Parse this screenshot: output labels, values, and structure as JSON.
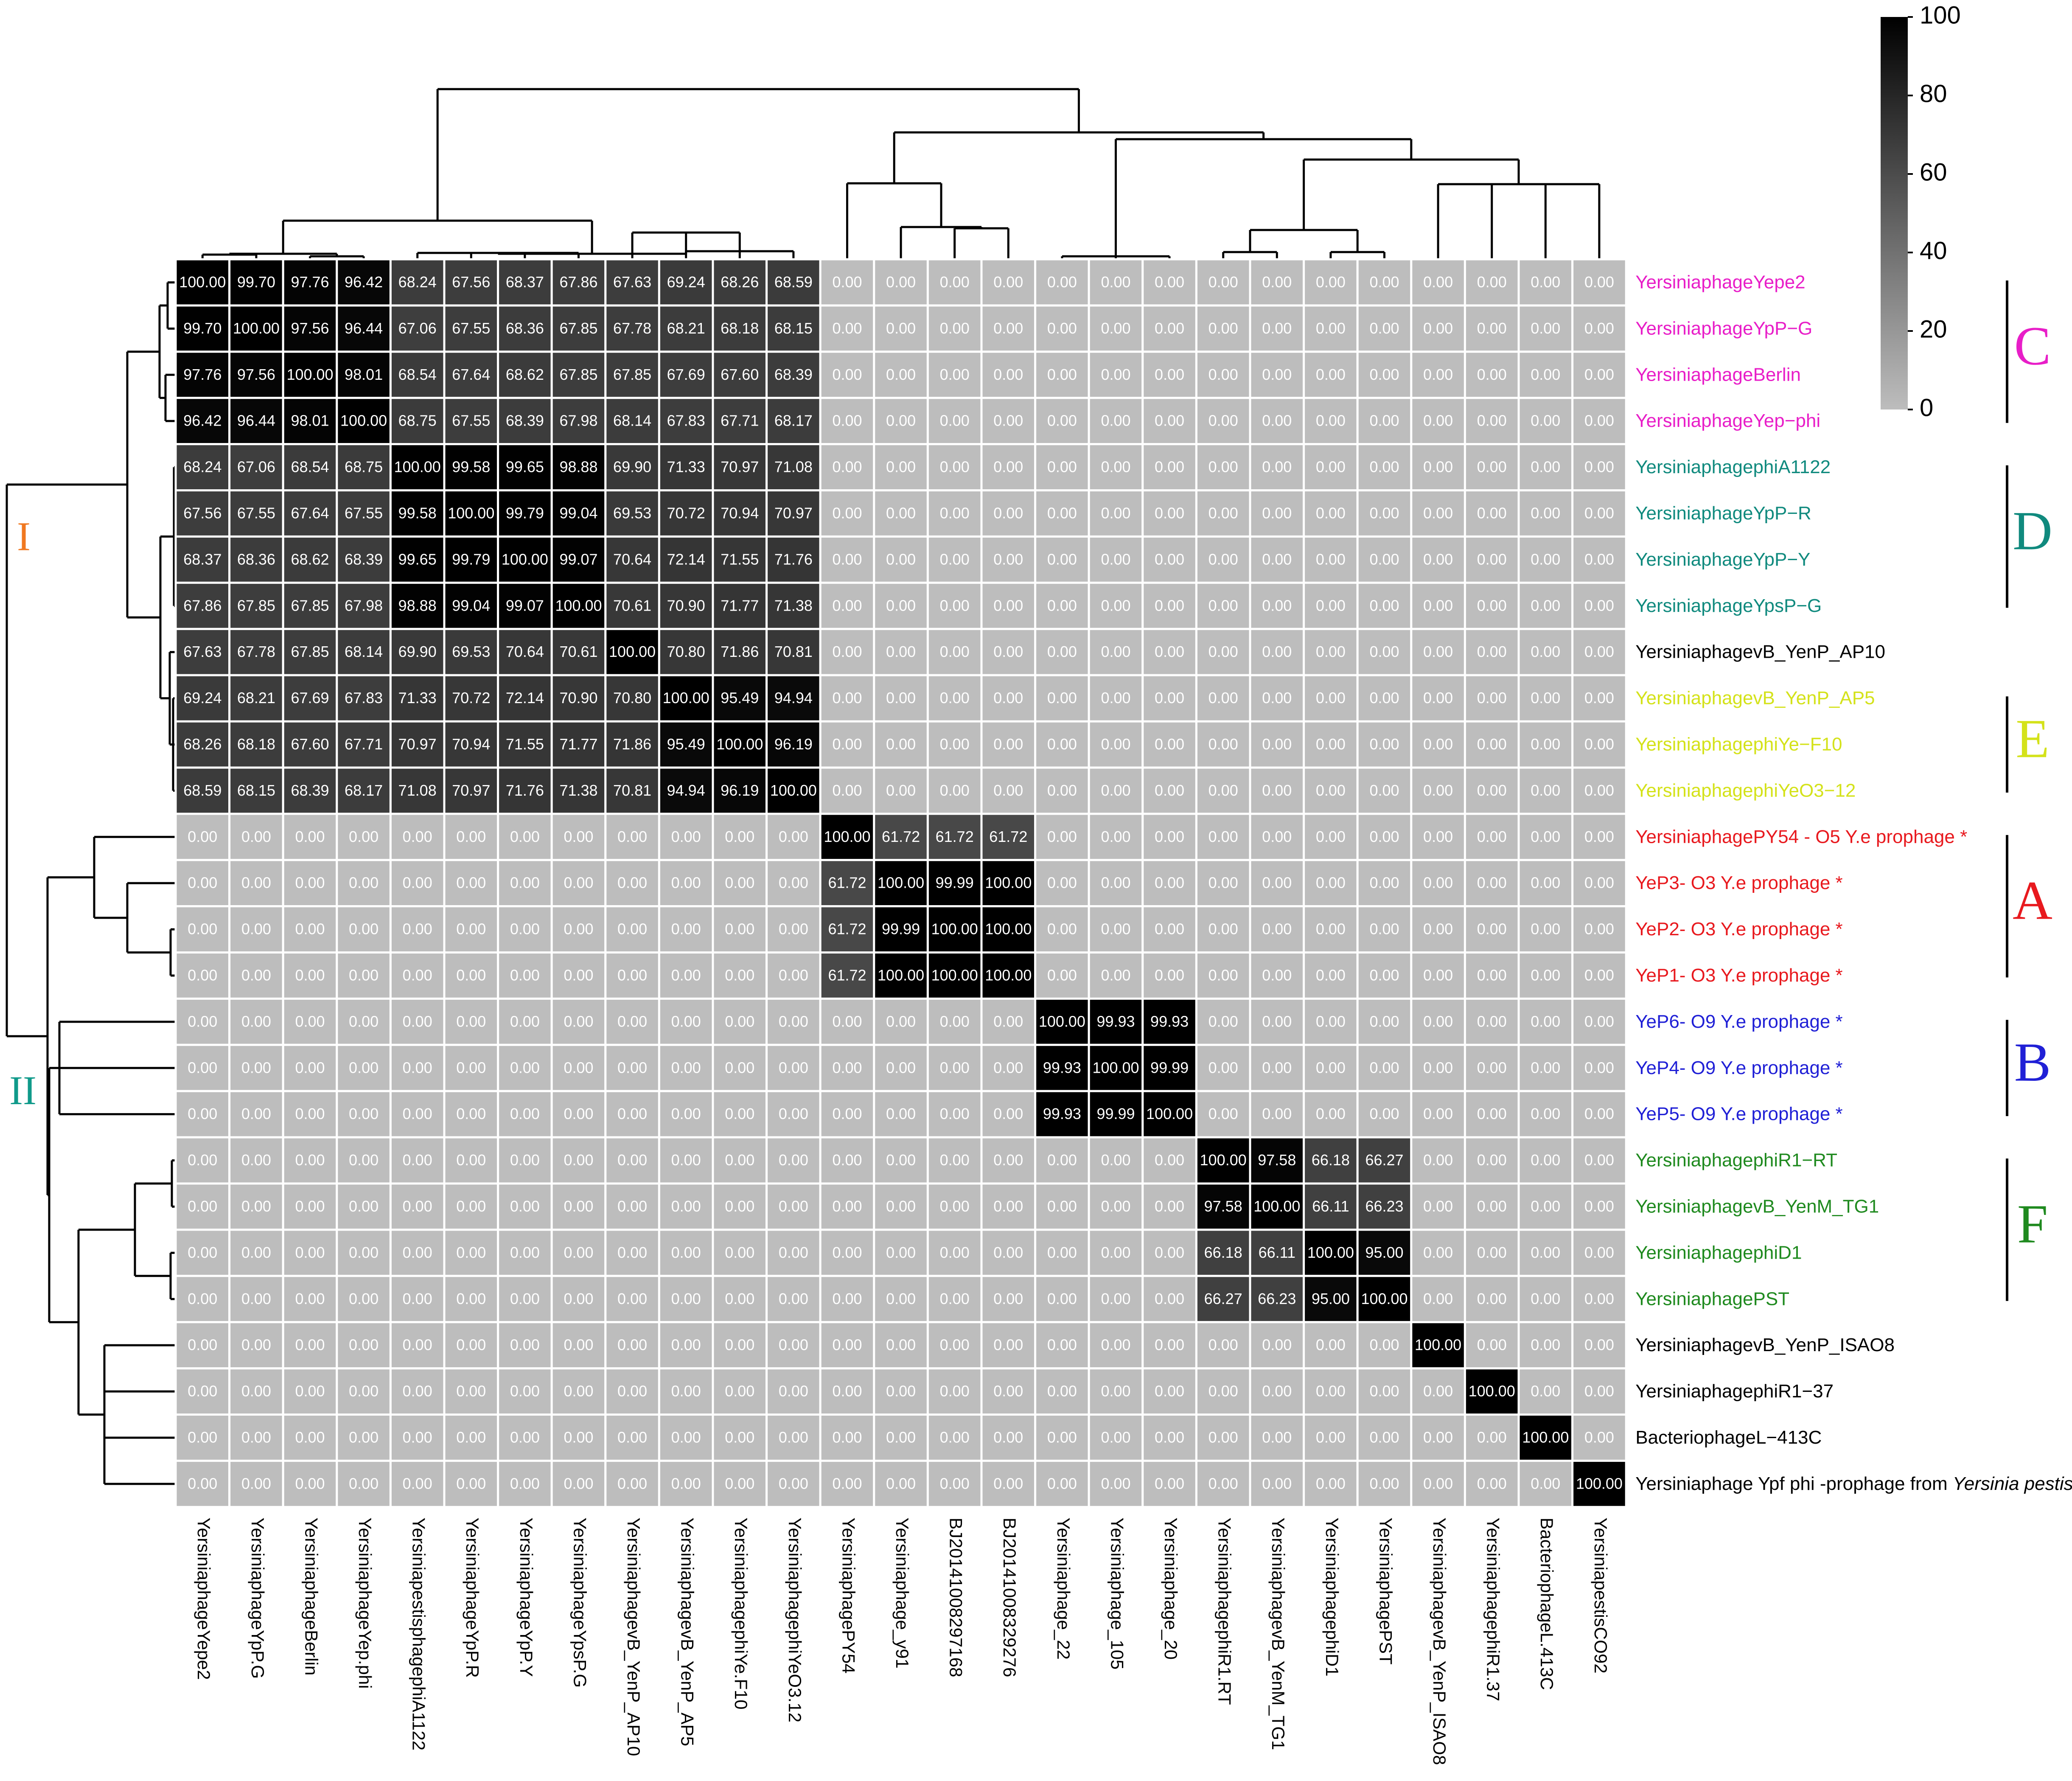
{
  "chart_data": {
    "type": "heatmap",
    "title": "",
    "columns": [
      "YersiniaphageYepe2",
      "YersiniaphageYpP.G",
      "YersiniaphageBerlin",
      "YersiniaphageYep.phi",
      "YersiniapestisphagephiA1122",
      "YersiniaphageYpP.R",
      "YersiniaphageYpP.Y",
      "YersiniaphageYpsP.G",
      "YersiniaphagevB_YenP_AP10",
      "YersiniaphagevB_YenP_AP5",
      "YersiniaphagephiYe.F10",
      "YersiniaphagephiYeO3.12",
      "YersiniaphagePY54",
      "Yersiniaphage_y91",
      "BJ20141008297168",
      "BJ20141008329276",
      "Yersiniaphage_22",
      "Yersiniaphage_105",
      "Yersiniaphage_20",
      "YersiniaphagephiR1.RT",
      "YersiniaphagevB_YenM_TG1",
      "YersiniaphagephiD1",
      "YersiniaphagePST",
      "YersiniaphagevB_YenP_ISAO8",
      "YersiniaphagephiR1.37",
      "BacteriophageL.413C",
      "YersiniapestisCO92"
    ],
    "rows": [
      {
        "label": "YersiniaphageYepe2",
        "color": "#e81ec8"
      },
      {
        "label": "YersiniaphageYpP−G",
        "color": "#e81ec8"
      },
      {
        "label": "YersiniaphageBerlin",
        "color": "#e81ec8"
      },
      {
        "label": "YersiniaphageYep−phi",
        "color": "#e81ec8"
      },
      {
        "label": "YersiniaphagephiA1122",
        "color": "#108a7e"
      },
      {
        "label": "YersiniaphageYpP−R",
        "color": "#108a7e"
      },
      {
        "label": "YersiniaphageYpP−Y",
        "color": "#108a7e"
      },
      {
        "label": "YersiniaphageYpsP−G",
        "color": "#108a7e"
      },
      {
        "label": "YersiniaphagevB_YenP_AP10",
        "color": "#000000"
      },
      {
        "label": "YersiniaphagevB_YenP_AP5",
        "color": "#d4e21a"
      },
      {
        "label": "YersiniaphagephiYe−F10",
        "color": "#d4e21a"
      },
      {
        "label": "YersiniaphagephiYeO3−12",
        "color": "#d4e21a"
      },
      {
        "label": "YersiniaphagePY54 - O5 Y.e prophage *",
        "color": "#e8191e"
      },
      {
        "label": "YeP3- O3 Y.e prophage *",
        "color": "#e8191e"
      },
      {
        "label": "YeP2- O3 Y.e prophage *",
        "color": "#e8191e"
      },
      {
        "label": "YeP1- O3 Y.e prophage  *",
        "color": "#e8191e"
      },
      {
        "label": "YeP6- O9 Y.e prophage *",
        "color": "#2020d6"
      },
      {
        "label": "YeP4- O9 Y.e prophage *",
        "color": "#2020d6"
      },
      {
        "label": "YeP5- O9 Y.e prophage *",
        "color": "#2020d6"
      },
      {
        "label": "YersiniaphagephiR1−RT",
        "color": "#1f8a1f"
      },
      {
        "label": "YersiniaphagevB_YenM_TG1",
        "color": "#1f8a1f"
      },
      {
        "label": "YersiniaphagephiD1",
        "color": "#1f8a1f"
      },
      {
        "label": "YersiniaphagePST",
        "color": "#1f8a1f"
      },
      {
        "label": "YersiniaphagevB_YenP_ISAO8",
        "color": "#000000"
      },
      {
        "label": "YersiniaphagephiR1−37",
        "color": "#000000"
      },
      {
        "label": "BacteriophageL−413C",
        "color": "#000000"
      },
      {
        "label": "Yersiniaphage Ypf phi -prophage from ",
        "italic_suffix": "Yersinia pestis",
        "color": "#000000"
      }
    ],
    "values": [
      [
        100.0,
        99.7,
        97.76,
        96.42,
        68.24,
        67.56,
        68.37,
        67.86,
        67.63,
        69.24,
        68.26,
        68.59,
        0,
        0,
        0,
        0,
        0,
        0,
        0,
        0,
        0,
        0,
        0,
        0,
        0,
        0,
        0
      ],
      [
        99.7,
        100.0,
        97.56,
        96.44,
        67.06,
        67.55,
        68.36,
        67.85,
        67.78,
        68.21,
        68.18,
        68.15,
        0,
        0,
        0,
        0,
        0,
        0,
        0,
        0,
        0,
        0,
        0,
        0,
        0,
        0,
        0
      ],
      [
        97.76,
        97.56,
        100.0,
        98.01,
        68.54,
        67.64,
        68.62,
        67.85,
        67.85,
        67.69,
        67.6,
        68.39,
        0,
        0,
        0,
        0,
        0,
        0,
        0,
        0,
        0,
        0,
        0,
        0,
        0,
        0,
        0
      ],
      [
        96.42,
        96.44,
        98.01,
        100.0,
        68.75,
        67.55,
        68.39,
        67.98,
        68.14,
        67.83,
        67.71,
        68.17,
        0,
        0,
        0,
        0,
        0,
        0,
        0,
        0,
        0,
        0,
        0,
        0,
        0,
        0,
        0
      ],
      [
        68.24,
        67.06,
        68.54,
        68.75,
        100.0,
        99.58,
        99.65,
        98.88,
        69.9,
        71.33,
        70.97,
        71.08,
        0,
        0,
        0,
        0,
        0,
        0,
        0,
        0,
        0,
        0,
        0,
        0,
        0,
        0,
        0
      ],
      [
        67.56,
        67.55,
        67.64,
        67.55,
        99.58,
        100.0,
        99.79,
        99.04,
        69.53,
        70.72,
        70.94,
        70.97,
        0,
        0,
        0,
        0,
        0,
        0,
        0,
        0,
        0,
        0,
        0,
        0,
        0,
        0,
        0
      ],
      [
        68.37,
        68.36,
        68.62,
        68.39,
        99.65,
        99.79,
        100.0,
        99.07,
        70.64,
        72.14,
        71.55,
        71.76,
        0,
        0,
        0,
        0,
        0,
        0,
        0,
        0,
        0,
        0,
        0,
        0,
        0,
        0,
        0
      ],
      [
        67.86,
        67.85,
        67.85,
        67.98,
        98.88,
        99.04,
        99.07,
        100.0,
        70.61,
        70.9,
        71.77,
        71.38,
        0,
        0,
        0,
        0,
        0,
        0,
        0,
        0,
        0,
        0,
        0,
        0,
        0,
        0,
        0
      ],
      [
        67.63,
        67.78,
        67.85,
        68.14,
        69.9,
        69.53,
        70.64,
        70.61,
        100.0,
        70.8,
        71.86,
        70.81,
        0,
        0,
        0,
        0,
        0,
        0,
        0,
        0,
        0,
        0,
        0,
        0,
        0,
        0,
        0
      ],
      [
        69.24,
        68.21,
        67.69,
        67.83,
        71.33,
        70.72,
        72.14,
        70.9,
        70.8,
        100.0,
        95.49,
        94.94,
        0,
        0,
        0,
        0,
        0,
        0,
        0,
        0,
        0,
        0,
        0,
        0,
        0,
        0,
        0
      ],
      [
        68.26,
        68.18,
        67.6,
        67.71,
        70.97,
        70.94,
        71.55,
        71.77,
        71.86,
        95.49,
        100.0,
        96.19,
        0,
        0,
        0,
        0,
        0,
        0,
        0,
        0,
        0,
        0,
        0,
        0,
        0,
        0,
        0
      ],
      [
        68.59,
        68.15,
        68.39,
        68.17,
        71.08,
        70.97,
        71.76,
        71.38,
        70.81,
        94.94,
        96.19,
        100.0,
        0,
        0,
        0,
        0,
        0,
        0,
        0,
        0,
        0,
        0,
        0,
        0,
        0,
        0,
        0
      ],
      [
        0,
        0,
        0,
        0,
        0,
        0,
        0,
        0,
        0,
        0,
        0,
        0,
        100.0,
        61.72,
        61.72,
        61.72,
        0,
        0,
        0,
        0,
        0,
        0,
        0,
        0,
        0,
        0,
        0
      ],
      [
        0,
        0,
        0,
        0,
        0,
        0,
        0,
        0,
        0,
        0,
        0,
        0,
        61.72,
        100.0,
        99.99,
        100.0,
        0,
        0,
        0,
        0,
        0,
        0,
        0,
        0,
        0,
        0,
        0
      ],
      [
        0,
        0,
        0,
        0,
        0,
        0,
        0,
        0,
        0,
        0,
        0,
        0,
        61.72,
        99.99,
        100.0,
        100.0,
        0,
        0,
        0,
        0,
        0,
        0,
        0,
        0,
        0,
        0,
        0
      ],
      [
        0,
        0,
        0,
        0,
        0,
        0,
        0,
        0,
        0,
        0,
        0,
        0,
        61.72,
        100.0,
        100.0,
        100.0,
        0,
        0,
        0,
        0,
        0,
        0,
        0,
        0,
        0,
        0,
        0
      ],
      [
        0,
        0,
        0,
        0,
        0,
        0,
        0,
        0,
        0,
        0,
        0,
        0,
        0,
        0,
        0,
        0,
        100.0,
        99.93,
        99.93,
        0,
        0,
        0,
        0,
        0,
        0,
        0,
        0
      ],
      [
        0,
        0,
        0,
        0,
        0,
        0,
        0,
        0,
        0,
        0,
        0,
        0,
        0,
        0,
        0,
        0,
        99.93,
        100.0,
        99.99,
        0,
        0,
        0,
        0,
        0,
        0,
        0,
        0
      ],
      [
        0,
        0,
        0,
        0,
        0,
        0,
        0,
        0,
        0,
        0,
        0,
        0,
        0,
        0,
        0,
        0,
        99.93,
        99.99,
        100.0,
        0,
        0,
        0,
        0,
        0,
        0,
        0,
        0
      ],
      [
        0,
        0,
        0,
        0,
        0,
        0,
        0,
        0,
        0,
        0,
        0,
        0,
        0,
        0,
        0,
        0,
        0,
        0,
        0,
        100.0,
        97.58,
        66.18,
        66.27,
        0,
        0,
        0,
        0
      ],
      [
        0,
        0,
        0,
        0,
        0,
        0,
        0,
        0,
        0,
        0,
        0,
        0,
        0,
        0,
        0,
        0,
        0,
        0,
        0,
        97.58,
        100.0,
        66.11,
        66.23,
        0,
        0,
        0,
        0
      ],
      [
        0,
        0,
        0,
        0,
        0,
        0,
        0,
        0,
        0,
        0,
        0,
        0,
        0,
        0,
        0,
        0,
        0,
        0,
        0,
        66.18,
        66.11,
        100.0,
        95.0,
        0,
        0,
        0,
        0
      ],
      [
        0,
        0,
        0,
        0,
        0,
        0,
        0,
        0,
        0,
        0,
        0,
        0,
        0,
        0,
        0,
        0,
        0,
        0,
        0,
        66.27,
        66.23,
        95.0,
        100.0,
        0,
        0,
        0,
        0
      ],
      [
        0,
        0,
        0,
        0,
        0,
        0,
        0,
        0,
        0,
        0,
        0,
        0,
        0,
        0,
        0,
        0,
        0,
        0,
        0,
        0,
        0,
        0,
        0,
        100.0,
        0,
        0,
        0
      ],
      [
        0,
        0,
        0,
        0,
        0,
        0,
        0,
        0,
        0,
        0,
        0,
        0,
        0,
        0,
        0,
        0,
        0,
        0,
        0,
        0,
        0,
        0,
        0,
        0,
        100.0,
        0,
        0
      ],
      [
        0,
        0,
        0,
        0,
        0,
        0,
        0,
        0,
        0,
        0,
        0,
        0,
        0,
        0,
        0,
        0,
        0,
        0,
        0,
        0,
        0,
        0,
        0,
        0,
        0,
        100.0,
        0
      ],
      [
        0,
        0,
        0,
        0,
        0,
        0,
        0,
        0,
        0,
        0,
        0,
        0,
        0,
        0,
        0,
        0,
        0,
        0,
        0,
        0,
        0,
        0,
        0,
        0,
        0,
        0,
        100.0
      ]
    ],
    "colorbar": {
      "min": 0,
      "max": 100,
      "ticks": [
        0,
        20,
        40,
        60,
        80,
        100
      ],
      "low_color": "#bdbdbd",
      "high_color": "#000000"
    },
    "clades": [
      {
        "label": "C",
        "rows": [
          0,
          3
        ],
        "color": "#e81ec8"
      },
      {
        "label": "D",
        "rows": [
          4,
          7
        ],
        "color": "#108a7e"
      },
      {
        "label": "E",
        "rows": [
          9,
          11
        ],
        "color": "#d4e21a"
      },
      {
        "label": "A",
        "rows": [
          12,
          15
        ],
        "color": "#e8191e"
      },
      {
        "label": "B",
        "rows": [
          16,
          18
        ],
        "color": "#2020d6"
      },
      {
        "label": "F",
        "rows": [
          19,
          22
        ],
        "color": "#1f8a1f"
      }
    ],
    "groups": [
      {
        "label": "I",
        "color": "#f07820"
      },
      {
        "label": "II",
        "color": "#109a8a"
      }
    ],
    "dendrograms": {
      "row": "hierarchical clustering tree (left)",
      "column": "hierarchical clustering tree (top)"
    }
  }
}
